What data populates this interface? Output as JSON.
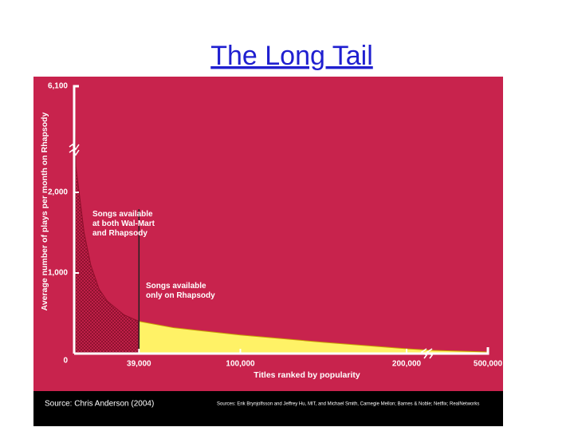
{
  "chart_data": {
    "type": "area",
    "title": "The Long Tail",
    "xlabel": "Titles ranked by popularity",
    "ylabel": "Average number of plays per month on Rhapsody",
    "xlim": [
      0,
      500000
    ],
    "ylim": [
      0,
      6100
    ],
    "xticks": [
      0,
      {
        "value": 39000,
        "label": "39,000"
      },
      {
        "value": 100000,
        "label": "100,000"
      },
      {
        "value": 200000,
        "label": "200,000"
      },
      {
        "value": 500000,
        "label": "500,000"
      }
    ],
    "yticks": [
      0,
      {
        "value": 1000,
        "label": "1,000"
      },
      {
        "value": 2000,
        "label": "2,000"
      },
      {
        "value": 6100,
        "label": "6,100"
      }
    ],
    "series": [
      {
        "color": "#8f0f2c",
        "x": [
          0,
          1000,
          3000,
          6000,
          10000,
          15000,
          20000,
          30000,
          39000
        ],
        "values": [
          6100,
          3000,
          2000,
          1500,
          1100,
          800,
          650,
          480,
          400
        ]
      },
      {
        "color": "#fff266",
        "x": [
          39000,
          60000,
          100000,
          150000,
          200000,
          300000,
          500000
        ],
        "values": [
          400,
          320,
          230,
          140,
          60,
          40,
          20
        ]
      }
    ],
    "annotations": [
      "Songs available at both Wal-Mart and Rhapsody",
      "Songs available only on Rhapsody"
    ],
    "source": "Source: Chris Anderson (2004)",
    "credits": "Sources: Erik Brynjolfsson and Jeffrey Hu, MIT, and Michael Smith, Carnegie Mellon; Barnes & Noble; Netflix; RealNetworks"
  }
}
